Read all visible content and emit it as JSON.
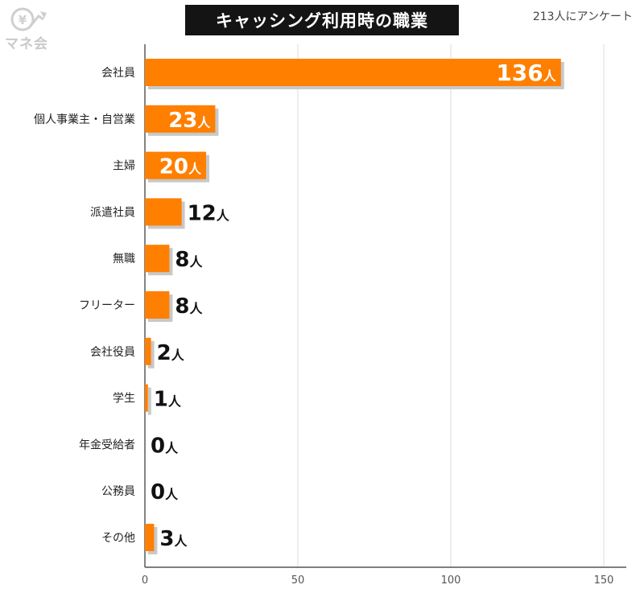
{
  "header": {
    "title": "キャッシング利用時の職業",
    "note": "213人にアンケート",
    "logo_text": "マネ会"
  },
  "colors": {
    "bar": "#ff7f00",
    "shadow": "#c8c8c8",
    "title_bg": "#141414"
  },
  "chart_data": {
    "type": "bar",
    "orientation": "horizontal",
    "title": "キャッシング利用時の職業",
    "unit": "人",
    "categories": [
      "会社員",
      "個人事業主・自営業",
      "主婦",
      "派遣社員",
      "無職",
      "フリーター",
      "会社役員",
      "学生",
      "年金受給者",
      "公務員",
      "その他"
    ],
    "values": [
      136,
      23,
      20,
      12,
      8,
      8,
      2,
      1,
      0,
      0,
      3
    ],
    "xlim": [
      0,
      150
    ],
    "xticks": [
      0,
      50,
      100,
      150
    ],
    "grid": true,
    "legend": "none"
  }
}
